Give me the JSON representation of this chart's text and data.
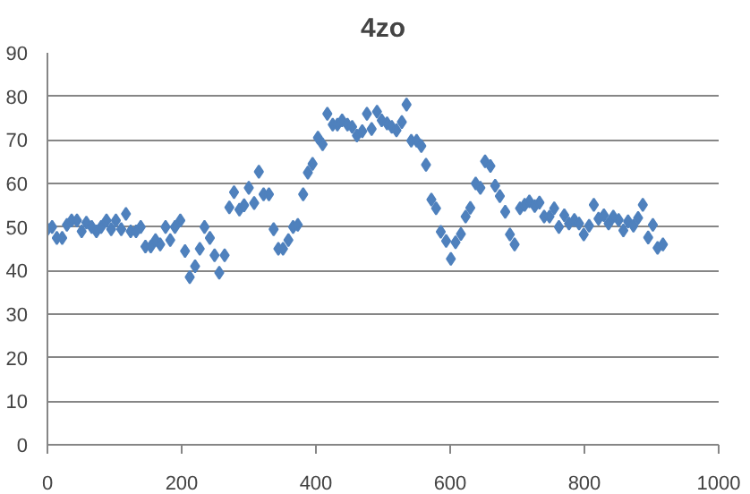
{
  "chart_data": {
    "type": "scatter",
    "title": "4zo",
    "marker": "diamond",
    "grid": "y",
    "xlim": [
      0,
      1000
    ],
    "ylim": [
      0,
      90
    ],
    "xticks": [
      0,
      200,
      400,
      600,
      800,
      1000
    ],
    "yticks": [
      0,
      10,
      20,
      30,
      40,
      50,
      60,
      70,
      80,
      90
    ],
    "series": [
      {
        "color": "#4f81bd",
        "x": [
          0,
          7,
          14,
          22,
          29,
          36,
          44,
          51,
          58,
          66,
          73,
          80,
          88,
          95,
          102,
          110,
          117,
          124,
          132,
          139,
          146,
          154,
          161,
          168,
          176,
          183,
          190,
          198,
          205,
          212,
          220,
          227,
          234,
          242,
          249,
          256,
          264,
          271,
          278,
          286,
          293,
          300,
          308,
          315,
          322,
          330,
          337,
          344,
          351,
          359,
          366,
          373,
          381,
          388,
          395,
          403,
          410,
          417,
          425,
          432,
          439,
          447,
          454,
          461,
          469,
          476,
          483,
          491,
          498,
          506,
          513,
          520,
          528,
          535,
          542,
          550,
          557,
          564,
          572,
          579,
          586,
          594,
          601,
          608,
          616,
          623,
          630,
          638,
          645,
          652,
          660,
          667,
          674,
          682,
          689,
          696,
          704,
          711,
          718,
          726,
          733,
          740,
          748,
          755,
          762,
          770,
          777,
          785,
          792,
          799,
          807,
          814,
          821,
          829,
          836,
          843,
          851,
          858,
          865,
          873,
          880,
          887,
          895,
          902,
          909,
          917
        ],
        "values": [
          49.5,
          50,
          47.5,
          47.5,
          50.5,
          51.5,
          51.5,
          49,
          51,
          50,
          49,
          50,
          51.5,
          49.5,
          51.5,
          49.5,
          53,
          49,
          49,
          50,
          45.5,
          45.5,
          47,
          46,
          50,
          47,
          50,
          51.5,
          44.5,
          38.5,
          41,
          45,
          50,
          47.5,
          43.5,
          39.5,
          43.5,
          54.5,
          58,
          54,
          55,
          59,
          55.5,
          62.7,
          57.5,
          57.5,
          49.5,
          45,
          45,
          47,
          50,
          50.5,
          57.5,
          62.5,
          64.5,
          70.5,
          69,
          76,
          73.5,
          73.5,
          74.5,
          73.5,
          73,
          71,
          72,
          76,
          72.5,
          76.5,
          74.5,
          73.8,
          73,
          72.2,
          74.1,
          78.1,
          69.8,
          69.8,
          68.6,
          64.3,
          56.3,
          54.3,
          48.9,
          46.8,
          42.7,
          46.5,
          48.4,
          52.4,
          54.4,
          60,
          59,
          65.1,
          64,
          59.5,
          57.1,
          53.5,
          48.3,
          46,
          54.3,
          55.1,
          55.9,
          54.8,
          55.6,
          52.4,
          52.4,
          54.3,
          50,
          52.7,
          50.8,
          51.6,
          50.8,
          48.3,
          50.3,
          55.1,
          51.9,
          52.7,
          50.8,
          52.4,
          51.6,
          49.2,
          51.3,
          50.3,
          52.1,
          55.1,
          47.6,
          50.5,
          45.2,
          46
        ]
      }
    ]
  }
}
